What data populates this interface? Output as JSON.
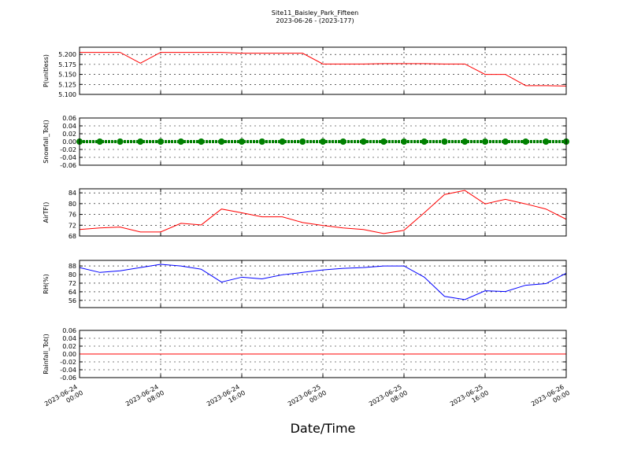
{
  "header": {
    "title": "Site11_Baisley_Park_Fifteen",
    "subtitle": "2023-06-26 - (2023-177)"
  },
  "chart_data": [
    {
      "type": "line",
      "ylabel": "P(unitless)",
      "color": "#ff0000",
      "x": [
        "2023-06-24 00:00",
        "2023-06-24 02:00",
        "2023-06-24 04:00",
        "2023-06-24 06:00",
        "2023-06-24 08:00",
        "2023-06-24 10:00",
        "2023-06-24 12:00",
        "2023-06-24 14:00",
        "2023-06-24 16:00",
        "2023-06-24 18:00",
        "2023-06-24 20:00",
        "2023-06-24 22:00",
        "2023-06-25 00:00",
        "2023-06-25 02:00",
        "2023-06-25 04:00",
        "2023-06-25 06:00",
        "2023-06-25 08:00",
        "2023-06-25 10:00",
        "2023-06-25 12:00",
        "2023-06-25 14:00",
        "2023-06-25 16:00",
        "2023-06-25 18:00",
        "2023-06-25 20:00",
        "2023-06-25 22:00",
        "2023-06-26 00:00"
      ],
      "values": [
        5.205,
        5.205,
        5.205,
        5.178,
        5.205,
        5.205,
        5.205,
        5.205,
        5.203,
        5.203,
        5.203,
        5.203,
        5.176,
        5.176,
        5.176,
        5.177,
        5.177,
        5.177,
        5.176,
        5.176,
        5.15,
        5.15,
        5.122,
        5.122,
        5.121
      ],
      "xlim": [
        "2023-06-24 00:00",
        "2023-06-26 00:00"
      ],
      "xticks": [
        "2023-06-24 00:00",
        "2023-06-24 08:00",
        "2023-06-24 16:00",
        "2023-06-25 00:00",
        "2023-06-25 08:00",
        "2023-06-25 16:00",
        "2023-06-26 00:00"
      ],
      "ylim": [
        5.1,
        5.218
      ],
      "yticks": [
        {
          "value": 5.1,
          "label": "5.100"
        },
        5.125,
        {
          "value": 5.15,
          "label": "5.150"
        },
        5.175,
        {
          "value": 5.2,
          "label": "5.200"
        }
      ],
      "grid": true
    },
    {
      "type": "scatter",
      "ylabel": "Snowfall_Tot()",
      "color": "#008000",
      "x": [
        "2023-06-24 00:00",
        "2023-06-24 02:00",
        "2023-06-24 04:00",
        "2023-06-24 06:00",
        "2023-06-24 08:00",
        "2023-06-24 10:00",
        "2023-06-24 12:00",
        "2023-06-24 14:00",
        "2023-06-24 16:00",
        "2023-06-24 18:00",
        "2023-06-24 20:00",
        "2023-06-24 22:00",
        "2023-06-25 00:00",
        "2023-06-25 02:00",
        "2023-06-25 04:00",
        "2023-06-25 06:00",
        "2023-06-25 08:00",
        "2023-06-25 10:00",
        "2023-06-25 12:00",
        "2023-06-25 14:00",
        "2023-06-25 16:00",
        "2023-06-25 18:00",
        "2023-06-25 20:00",
        "2023-06-25 22:00",
        "2023-06-26 00:00"
      ],
      "values": [
        0,
        0,
        0,
        0,
        0,
        0,
        0,
        0,
        0,
        0,
        0,
        0,
        0,
        0,
        0,
        0,
        0,
        0,
        0,
        0,
        0,
        0,
        0,
        0,
        0
      ],
      "xlim": [
        "2023-06-24 00:00",
        "2023-06-26 00:00"
      ],
      "xticks": [
        "2023-06-24 00:00",
        "2023-06-24 08:00",
        "2023-06-24 16:00",
        "2023-06-25 00:00",
        "2023-06-25 08:00",
        "2023-06-25 16:00",
        "2023-06-26 00:00"
      ],
      "ylim": [
        -0.06,
        0.06
      ],
      "yticks": [
        -0.06,
        -0.04,
        -0.02,
        {
          "value": 0,
          "label": "0.00"
        },
        0.02,
        0.04,
        0.06
      ],
      "grid": true
    },
    {
      "type": "line",
      "ylabel": "AirTF()",
      "color": "#ff0000",
      "x": [
        "2023-06-24 00:00",
        "2023-06-24 02:00",
        "2023-06-24 04:00",
        "2023-06-24 06:00",
        "2023-06-24 08:00",
        "2023-06-24 10:00",
        "2023-06-24 12:00",
        "2023-06-24 14:00",
        "2023-06-24 16:00",
        "2023-06-24 18:00",
        "2023-06-24 20:00",
        "2023-06-24 22:00",
        "2023-06-25 00:00",
        "2023-06-25 02:00",
        "2023-06-25 04:00",
        "2023-06-25 06:00",
        "2023-06-25 08:00",
        "2023-06-25 10:00",
        "2023-06-25 12:00",
        "2023-06-25 14:00",
        "2023-06-25 16:00",
        "2023-06-25 18:00",
        "2023-06-25 20:00",
        "2023-06-25 22:00",
        "2023-06-26 00:00"
      ],
      "values": [
        70.4,
        71,
        71.3,
        69.5,
        69.5,
        72.7,
        72.1,
        78,
        76.6,
        75.1,
        75.1,
        73,
        71.9,
        71,
        70.4,
        68.9,
        70.1,
        76.6,
        83.4,
        84.9,
        79.9,
        81.6,
        79.9,
        78,
        74.2
      ],
      "xlim": [
        "2023-06-24 00:00",
        "2023-06-26 00:00"
      ],
      "xticks": [
        "2023-06-24 00:00",
        "2023-06-24 08:00",
        "2023-06-24 16:00",
        "2023-06-25 00:00",
        "2023-06-25 08:00",
        "2023-06-25 16:00",
        "2023-06-26 00:00"
      ],
      "ylim": [
        68,
        85.5
      ],
      "yticks": [
        68,
        72,
        76,
        80,
        84
      ],
      "grid": true
    },
    {
      "type": "line",
      "ylabel": "RH(%)",
      "color": "#0000ff",
      "x": [
        "2023-06-24 00:00",
        "2023-06-24 02:00",
        "2023-06-24 04:00",
        "2023-06-24 06:00",
        "2023-06-24 08:00",
        "2023-06-24 10:00",
        "2023-06-24 12:00",
        "2023-06-24 14:00",
        "2023-06-24 16:00",
        "2023-06-24 18:00",
        "2023-06-24 20:00",
        "2023-06-24 22:00",
        "2023-06-25 00:00",
        "2023-06-25 02:00",
        "2023-06-25 04:00",
        "2023-06-25 06:00",
        "2023-06-25 08:00",
        "2023-06-25 10:00",
        "2023-06-25 12:00",
        "2023-06-25 14:00",
        "2023-06-25 16:00",
        "2023-06-25 18:00",
        "2023-06-25 20:00",
        "2023-06-25 22:00",
        "2023-06-26 00:00"
      ],
      "values": [
        86.5,
        82,
        83.5,
        86.5,
        89.5,
        88,
        85,
        73,
        77.6,
        76,
        79.8,
        82,
        84.3,
        85.8,
        86.5,
        88,
        88,
        77.6,
        59.7,
        56.7,
        64.9,
        64.2,
        70.1,
        71.6,
        81.3
      ],
      "xlim": [
        "2023-06-24 00:00",
        "2023-06-26 00:00"
      ],
      "xticks": [
        "2023-06-24 00:00",
        "2023-06-24 08:00",
        "2023-06-24 16:00",
        "2023-06-25 00:00",
        "2023-06-25 08:00",
        "2023-06-25 16:00",
        "2023-06-26 00:00"
      ],
      "ylim": [
        49.3,
        93.2
      ],
      "yticks": [
        56,
        64,
        72,
        80,
        88
      ],
      "grid": true
    },
    {
      "type": "line",
      "ylabel": "Rainfall_Tot()",
      "xlabel": "Date/Time",
      "color": "#ff0000",
      "x": [
        "2023-06-24 00:00",
        "2023-06-24 02:00",
        "2023-06-24 04:00",
        "2023-06-24 06:00",
        "2023-06-24 08:00",
        "2023-06-24 10:00",
        "2023-06-24 12:00",
        "2023-06-24 14:00",
        "2023-06-24 16:00",
        "2023-06-24 18:00",
        "2023-06-24 20:00",
        "2023-06-24 22:00",
        "2023-06-25 00:00",
        "2023-06-25 02:00",
        "2023-06-25 04:00",
        "2023-06-25 06:00",
        "2023-06-25 08:00",
        "2023-06-25 10:00",
        "2023-06-25 12:00",
        "2023-06-25 14:00",
        "2023-06-25 16:00",
        "2023-06-25 18:00",
        "2023-06-25 20:00",
        "2023-06-25 22:00",
        "2023-06-26 00:00"
      ],
      "values": [
        0,
        0,
        0,
        0,
        0,
        0,
        0,
        0,
        0,
        0,
        0,
        0,
        0,
        0,
        0,
        0,
        0,
        0,
        0,
        0,
        0,
        0,
        0,
        0,
        0
      ],
      "xlim": [
        "2023-06-24 00:00",
        "2023-06-26 00:00"
      ],
      "xticks": [
        "2023-06-24 00:00",
        "2023-06-24 08:00",
        "2023-06-24 16:00",
        "2023-06-25 00:00",
        "2023-06-25 08:00",
        "2023-06-25 16:00",
        "2023-06-26 00:00"
      ],
      "ylim": [
        -0.06,
        0.06
      ],
      "yticks": [
        -0.06,
        -0.04,
        -0.02,
        {
          "value": 0,
          "label": "0.00"
        },
        0.02,
        0.04,
        0.06
      ],
      "grid": true
    }
  ]
}
